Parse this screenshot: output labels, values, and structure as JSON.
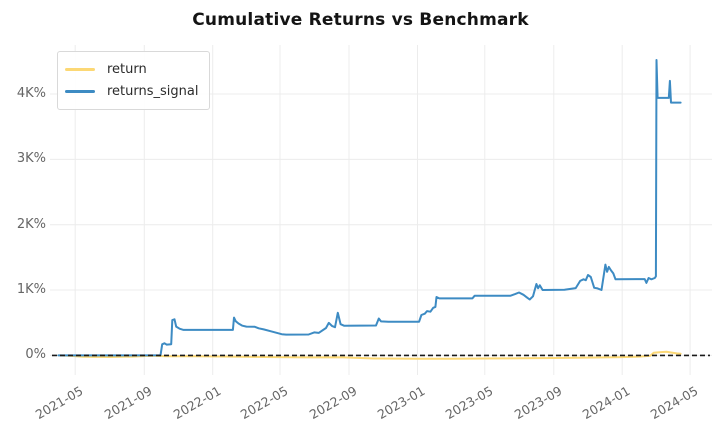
{
  "title": "Cumulative Returns vs Benchmark",
  "legend": {
    "items": [
      {
        "label": "return",
        "color": "#FCD875"
      },
      {
        "label": "returns_signal",
        "color": "#3D8BC3"
      }
    ]
  },
  "colors": {
    "grid": "#ececec",
    "zero_line": "#1a1a1a",
    "tick_label": "#666666",
    "title": "#141414",
    "series_return": "#FCD875",
    "series_returns_signal": "#3D8BC3"
  },
  "chart_data": {
    "type": "line",
    "title": "Cumulative Returns vs Benchmark",
    "xlabel": "",
    "ylabel": "",
    "grid": true,
    "legend_position": "upper left",
    "xlim": [
      "2021-03-17",
      "2024-06-09"
    ],
    "ylim": [
      -300,
      4750
    ],
    "zero_line": {
      "style": "dashed",
      "value": 0,
      "color": "#1a1a1a"
    },
    "x_ticks": [
      {
        "label": "2021-05",
        "date": "2021-05-01"
      },
      {
        "label": "2021-09",
        "date": "2021-09-01"
      },
      {
        "label": "2022-01",
        "date": "2022-01-01"
      },
      {
        "label": "2022-05",
        "date": "2022-05-01"
      },
      {
        "label": "2022-09",
        "date": "2022-09-01"
      },
      {
        "label": "2023-01",
        "date": "2023-01-01"
      },
      {
        "label": "2023-05",
        "date": "2023-05-01"
      },
      {
        "label": "2023-09",
        "date": "2023-09-01"
      },
      {
        "label": "2024-01",
        "date": "2024-01-01"
      },
      {
        "label": "2024-05",
        "date": "2024-05-01"
      }
    ],
    "y_ticks": [
      {
        "label": "0%",
        "value": 0
      },
      {
        "label": "1K%",
        "value": 1000
      },
      {
        "label": "2K%",
        "value": 2000
      },
      {
        "label": "3K%",
        "value": 3000
      },
      {
        "label": "4K%",
        "value": 4000
      }
    ],
    "series": [
      {
        "name": "return",
        "color": "#FCD875",
        "points": [
          [
            "2021-04-01",
            0
          ],
          [
            "2021-04-20",
            -5
          ],
          [
            "2021-05-15",
            -22
          ],
          [
            "2021-07-01",
            -25
          ],
          [
            "2021-08-10",
            -18
          ],
          [
            "2021-09-15",
            -6
          ],
          [
            "2021-10-10",
            -14
          ],
          [
            "2021-12-01",
            -14
          ],
          [
            "2022-02-01",
            -18
          ],
          [
            "2022-04-01",
            -24
          ],
          [
            "2022-06-15",
            -30
          ],
          [
            "2022-08-15",
            -28
          ],
          [
            "2022-09-15",
            -38
          ],
          [
            "2022-10-15",
            -48
          ],
          [
            "2023-01-01",
            -52
          ],
          [
            "2023-03-01",
            -50
          ],
          [
            "2023-06-01",
            -46
          ],
          [
            "2023-09-01",
            -40
          ],
          [
            "2023-11-01",
            -34
          ],
          [
            "2024-01-01",
            -26
          ],
          [
            "2024-02-01",
            -18
          ],
          [
            "2024-02-20",
            -5
          ],
          [
            "2024-02-26",
            40
          ],
          [
            "2024-03-10",
            50
          ],
          [
            "2024-03-20",
            55
          ],
          [
            "2024-03-28",
            45
          ],
          [
            "2024-04-07",
            30
          ],
          [
            "2024-04-14",
            25
          ]
        ]
      },
      {
        "name": "returns_signal",
        "color": "#3D8BC3",
        "points": [
          [
            "2021-04-01",
            0
          ],
          [
            "2021-09-30",
            2
          ],
          [
            "2021-10-03",
            170
          ],
          [
            "2021-10-07",
            185
          ],
          [
            "2021-10-11",
            165
          ],
          [
            "2021-10-19",
            172
          ],
          [
            "2021-10-21",
            540
          ],
          [
            "2021-10-25",
            552
          ],
          [
            "2021-10-28",
            440
          ],
          [
            "2021-11-03",
            408
          ],
          [
            "2021-11-10",
            390
          ],
          [
            "2022-02-06",
            390
          ],
          [
            "2022-02-08",
            578
          ],
          [
            "2022-02-11",
            523
          ],
          [
            "2022-02-16",
            488
          ],
          [
            "2022-02-23",
            455
          ],
          [
            "2022-03-02",
            440
          ],
          [
            "2022-03-17",
            438
          ],
          [
            "2022-03-24",
            415
          ],
          [
            "2022-04-02",
            398
          ],
          [
            "2022-04-15",
            368
          ],
          [
            "2022-05-04",
            325
          ],
          [
            "2022-05-12",
            318
          ],
          [
            "2022-06-21",
            320
          ],
          [
            "2022-07-01",
            352
          ],
          [
            "2022-07-09",
            345
          ],
          [
            "2022-07-22",
            420
          ],
          [
            "2022-07-27",
            498
          ],
          [
            "2022-08-02",
            448
          ],
          [
            "2022-08-07",
            432
          ],
          [
            "2022-08-12",
            652
          ],
          [
            "2022-08-17",
            478
          ],
          [
            "2022-08-23",
            455
          ],
          [
            "2022-10-19",
            457
          ],
          [
            "2022-10-24",
            565
          ],
          [
            "2022-10-28",
            520
          ],
          [
            "2022-11-10",
            516
          ],
          [
            "2023-01-04",
            516
          ],
          [
            "2023-01-08",
            618
          ],
          [
            "2023-01-14",
            638
          ],
          [
            "2023-01-18",
            678
          ],
          [
            "2023-01-24",
            668
          ],
          [
            "2023-01-29",
            728
          ],
          [
            "2023-02-02",
            742
          ],
          [
            "2023-02-04",
            893
          ],
          [
            "2023-02-09",
            872
          ],
          [
            "2023-04-09",
            872
          ],
          [
            "2023-04-13",
            913
          ],
          [
            "2023-06-16",
            913
          ],
          [
            "2023-06-24",
            938
          ],
          [
            "2023-07-01",
            962
          ],
          [
            "2023-07-09",
            928
          ],
          [
            "2023-07-15",
            888
          ],
          [
            "2023-07-20",
            855
          ],
          [
            "2023-07-26",
            905
          ],
          [
            "2023-08-01",
            1092
          ],
          [
            "2023-08-04",
            1028
          ],
          [
            "2023-08-07",
            1072
          ],
          [
            "2023-08-12",
            1000
          ],
          [
            "2023-09-20",
            1005
          ],
          [
            "2023-10-10",
            1030
          ],
          [
            "2023-10-18",
            1140
          ],
          [
            "2023-10-24",
            1165
          ],
          [
            "2023-10-28",
            1150
          ],
          [
            "2023-11-01",
            1230
          ],
          [
            "2023-11-06",
            1200
          ],
          [
            "2023-11-12",
            1035
          ],
          [
            "2023-11-18",
            1025
          ],
          [
            "2023-11-25",
            1000
          ],
          [
            "2023-12-02",
            1390
          ],
          [
            "2023-12-05",
            1280
          ],
          [
            "2023-12-08",
            1355
          ],
          [
            "2023-12-12",
            1300
          ],
          [
            "2023-12-16",
            1255
          ],
          [
            "2023-12-20",
            1165
          ],
          [
            "2024-02-10",
            1168
          ],
          [
            "2024-02-13",
            1110
          ],
          [
            "2024-02-17",
            1185
          ],
          [
            "2024-02-22",
            1165
          ],
          [
            "2024-02-28",
            1185
          ],
          [
            "2024-03-01",
            1210
          ],
          [
            "2024-03-02",
            4520
          ],
          [
            "2024-03-04",
            3940
          ],
          [
            "2024-03-24",
            3940
          ],
          [
            "2024-03-26",
            4200
          ],
          [
            "2024-03-28",
            3868
          ],
          [
            "2024-04-14",
            3868
          ]
        ]
      }
    ]
  }
}
